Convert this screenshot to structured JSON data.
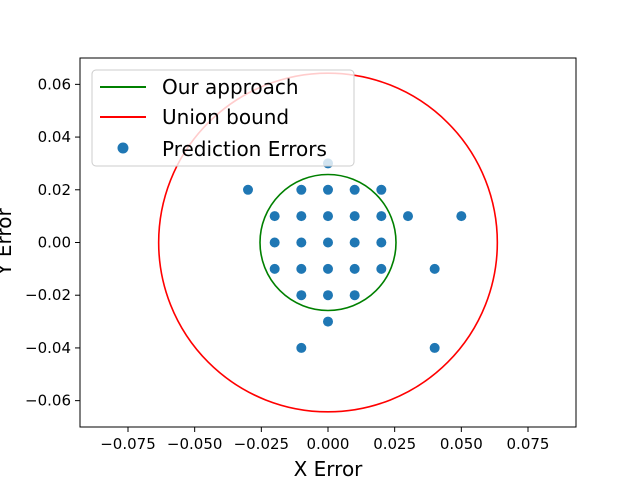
{
  "chart_data": {
    "type": "scatter",
    "title": "",
    "xlabel": "X Error",
    "ylabel": "Y Error",
    "xlim": [
      -0.093,
      0.093
    ],
    "ylim": [
      -0.07,
      0.07
    ],
    "x_ticks": [
      -0.075,
      -0.05,
      -0.025,
      0.0,
      0.025,
      0.05,
      0.075
    ],
    "x_tick_labels": [
      "−0.075",
      "−0.050",
      "−0.025",
      "0.000",
      "0.025",
      "0.050",
      "0.075"
    ],
    "y_ticks": [
      -0.06,
      -0.04,
      -0.02,
      0.0,
      0.02,
      0.04,
      0.06
    ],
    "y_tick_labels": [
      "−0.06",
      "−0.04",
      "−0.02",
      "0.00",
      "0.02",
      "0.04",
      "0.06"
    ],
    "grid": false,
    "legend_position": "top-left",
    "series": [
      {
        "name": "Our approach",
        "kind": "circle",
        "color": "#008000",
        "center": [
          0,
          0
        ],
        "radius": 0.0255
      },
      {
        "name": "Union bound",
        "kind": "circle",
        "color": "#ff0000",
        "center": [
          0,
          0
        ],
        "radius": 0.0635
      },
      {
        "name": "Prediction Errors",
        "kind": "scatter",
        "color": "#1f77b4",
        "points": [
          [
            0,
            0.03
          ],
          [
            -0.03,
            0.02
          ],
          [
            -0.01,
            0.02
          ],
          [
            0,
            0.02
          ],
          [
            0.01,
            0.02
          ],
          [
            0.02,
            0.02
          ],
          [
            -0.02,
            0.01
          ],
          [
            -0.01,
            0.01
          ],
          [
            0,
            0.01
          ],
          [
            0.01,
            0.01
          ],
          [
            0.02,
            0.01
          ],
          [
            0.03,
            0.01
          ],
          [
            0.05,
            0.01
          ],
          [
            -0.02,
            0
          ],
          [
            -0.01,
            0
          ],
          [
            0,
            0
          ],
          [
            0.01,
            0
          ],
          [
            0.02,
            0
          ],
          [
            -0.02,
            -0.01
          ],
          [
            -0.01,
            -0.01
          ],
          [
            0,
            -0.01
          ],
          [
            0.01,
            -0.01
          ],
          [
            0.02,
            -0.01
          ],
          [
            0.04,
            -0.01
          ],
          [
            -0.01,
            -0.02
          ],
          [
            0,
            -0.02
          ],
          [
            0.01,
            -0.02
          ],
          [
            0,
            -0.03
          ],
          [
            -0.01,
            -0.04
          ],
          [
            0.04,
            -0.04
          ]
        ]
      }
    ]
  }
}
